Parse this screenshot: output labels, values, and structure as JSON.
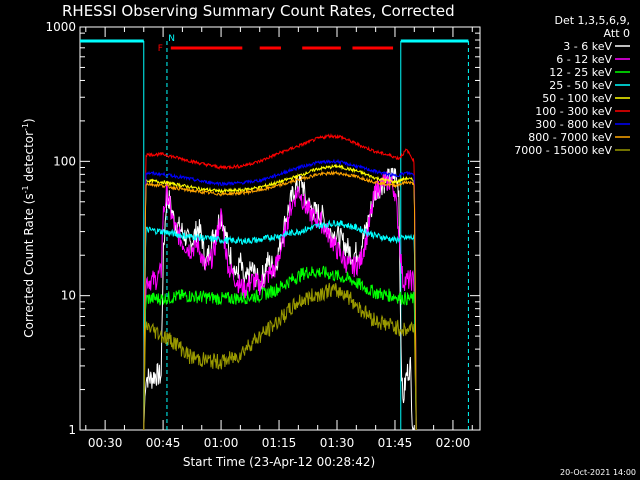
{
  "chart_data": {
    "type": "line",
    "title": "RHESSI Observing Summary Count Rates, Corrected",
    "xlabel": "Start Time (23-Apr-12 00:28:42)",
    "ylabel_main": "Corrected Count Rate (s",
    "ylabel_sup1": "-1",
    "ylabel_mid": " detector",
    "ylabel_sup2": "-1",
    "ylabel_end": ")",
    "yscale": "log",
    "ylim": [
      1,
      1000
    ],
    "xlim_minutes": [
      23.5,
      127
    ],
    "x_ticks": [
      {
        "m": 30,
        "label": "00:30"
      },
      {
        "m": 45,
        "label": "00:45"
      },
      {
        "m": 60,
        "label": "01:00"
      },
      {
        "m": 75,
        "label": "01:15"
      },
      {
        "m": 90,
        "label": "01:30"
      },
      {
        "m": 105,
        "label": "01:45"
      },
      {
        "m": 120,
        "label": "02:00"
      }
    ],
    "y_ticks": [
      {
        "v": 1,
        "label": "1"
      },
      {
        "v": 10,
        "label": "10"
      },
      {
        "v": 100,
        "label": "100"
      },
      {
        "v": 1000,
        "label": "1000"
      }
    ],
    "legend_header": [
      "Det 1,3,5,6,9,",
      "Att 0"
    ],
    "flags": {
      "f_label": "F",
      "n_label": "N"
    },
    "series": [
      {
        "name": "3 - 6 keV",
        "color": "#ffffff",
        "points": [
          [
            40,
            1
          ],
          [
            40.5,
            2.5
          ],
          [
            42,
            2.4
          ],
          [
            43,
            2.6
          ],
          [
            44.5,
            2.5
          ],
          [
            45,
            18
          ],
          [
            46,
            60
          ],
          [
            48,
            35
          ],
          [
            50,
            30
          ],
          [
            52,
            24
          ],
          [
            54,
            32
          ],
          [
            55,
            28
          ],
          [
            56,
            17
          ],
          [
            58,
            28
          ],
          [
            60,
            40
          ],
          [
            62,
            22
          ],
          [
            64,
            14
          ],
          [
            65,
            18
          ],
          [
            66,
            12
          ],
          [
            68,
            16
          ],
          [
            70,
            12
          ],
          [
            72,
            18
          ],
          [
            74,
            16
          ],
          [
            75,
            22
          ],
          [
            77,
            40
          ],
          [
            79,
            62
          ],
          [
            81,
            70
          ],
          [
            82,
            50
          ],
          [
            84,
            42
          ],
          [
            86,
            40
          ],
          [
            88,
            30
          ],
          [
            90,
            28
          ],
          [
            92,
            24
          ],
          [
            94,
            20
          ],
          [
            96,
            22
          ],
          [
            98,
            35
          ],
          [
            100,
            60
          ],
          [
            102,
            70
          ],
          [
            104,
            75
          ],
          [
            105,
            80
          ],
          [
            106,
            62
          ],
          [
            106.5,
            5
          ],
          [
            107,
            1.6
          ],
          [
            108,
            2.6
          ],
          [
            109,
            3
          ],
          [
            109.5,
            1.2
          ],
          [
            110,
            1
          ]
        ]
      },
      {
        "name": "6 - 12 keV",
        "color": "#ff00ff",
        "points": [
          [
            40,
            1
          ],
          [
            40.5,
            13
          ],
          [
            43,
            13
          ],
          [
            44.5,
            15
          ],
          [
            45,
            40
          ],
          [
            46,
            60
          ],
          [
            47,
            42
          ],
          [
            48,
            32
          ],
          [
            50,
            25
          ],
          [
            52,
            22
          ],
          [
            54,
            24
          ],
          [
            56,
            16
          ],
          [
            58,
            20
          ],
          [
            60,
            40
          ],
          [
            61,
            24
          ],
          [
            62,
            16
          ],
          [
            64,
            13
          ],
          [
            66,
            11
          ],
          [
            68,
            13
          ],
          [
            70,
            12
          ],
          [
            72,
            14
          ],
          [
            74,
            16
          ],
          [
            76,
            25
          ],
          [
            78,
            45
          ],
          [
            80,
            62
          ],
          [
            82,
            45
          ],
          [
            84,
            38
          ],
          [
            86,
            35
          ],
          [
            88,
            28
          ],
          [
            90,
            22
          ],
          [
            92,
            18
          ],
          [
            94,
            16
          ],
          [
            96,
            18
          ],
          [
            98,
            30
          ],
          [
            100,
            62
          ],
          [
            102,
            70
          ],
          [
            104,
            70
          ],
          [
            105,
            60
          ],
          [
            106,
            30
          ],
          [
            107,
            13
          ],
          [
            110,
            13
          ],
          [
            110.5,
            1
          ]
        ]
      },
      {
        "name": "12 - 25 keV",
        "color": "#00ff00",
        "points": [
          [
            40,
            1
          ],
          [
            40.5,
            9.5
          ],
          [
            45,
            9.5
          ],
          [
            50,
            10
          ],
          [
            55,
            9.8
          ],
          [
            60,
            9.5
          ],
          [
            65,
            9.6
          ],
          [
            70,
            10
          ],
          [
            74,
            11
          ],
          [
            78,
            13
          ],
          [
            82,
            15
          ],
          [
            86,
            15
          ],
          [
            90,
            14
          ],
          [
            94,
            13
          ],
          [
            97,
            11.5
          ],
          [
            100,
            10.5
          ],
          [
            104,
            10
          ],
          [
            108,
            9.5
          ],
          [
            110,
            9.5
          ],
          [
            110.5,
            1
          ]
        ]
      },
      {
        "name": "25 - 50 keV",
        "color": "#00ffff",
        "points": [
          [
            40,
            1
          ],
          [
            40.5,
            31
          ],
          [
            45,
            30
          ],
          [
            50,
            28
          ],
          [
            55,
            27
          ],
          [
            60,
            26
          ],
          [
            65,
            25.5
          ],
          [
            70,
            26
          ],
          [
            75,
            28
          ],
          [
            80,
            30
          ],
          [
            85,
            33
          ],
          [
            90,
            35
          ],
          [
            95,
            32
          ],
          [
            100,
            28
          ],
          [
            105,
            26
          ],
          [
            108,
            27
          ],
          [
            110,
            27
          ],
          [
            110.5,
            1
          ]
        ]
      },
      {
        "name": "50 - 100 keV",
        "color": "#ffff00",
        "points": [
          [
            40,
            1
          ],
          [
            40.5,
            72
          ],
          [
            45,
            70
          ],
          [
            50,
            66
          ],
          [
            55,
            62
          ],
          [
            60,
            60
          ],
          [
            65,
            61
          ],
          [
            70,
            64
          ],
          [
            75,
            70
          ],
          [
            80,
            78
          ],
          [
            85,
            88
          ],
          [
            90,
            92
          ],
          [
            95,
            85
          ],
          [
            100,
            75
          ],
          [
            105,
            70
          ],
          [
            108,
            75
          ],
          [
            110,
            72
          ],
          [
            110.5,
            1
          ]
        ]
      },
      {
        "name": "100 - 300 keV",
        "color": "#ff0000",
        "points": [
          [
            40,
            1
          ],
          [
            40.5,
            112
          ],
          [
            45,
            113
          ],
          [
            50,
            104
          ],
          [
            55,
            96
          ],
          [
            60,
            90
          ],
          [
            65,
            92
          ],
          [
            70,
            100
          ],
          [
            75,
            115
          ],
          [
            80,
            130
          ],
          [
            85,
            148
          ],
          [
            88,
            155
          ],
          [
            91,
            152
          ],
          [
            95,
            135
          ],
          [
            100,
            118
          ],
          [
            104,
            110
          ],
          [
            106,
            105
          ],
          [
            108,
            122
          ],
          [
            110,
            100
          ],
          [
            110.5,
            1
          ]
        ]
      },
      {
        "name": "300 - 800 keV",
        "color": "#0000ff",
        "points": [
          [
            40,
            1
          ],
          [
            40.5,
            82
          ],
          [
            45,
            80
          ],
          [
            50,
            76
          ],
          [
            55,
            71
          ],
          [
            60,
            68
          ],
          [
            65,
            69
          ],
          [
            70,
            72
          ],
          [
            75,
            80
          ],
          [
            80,
            90
          ],
          [
            85,
            98
          ],
          [
            90,
            100
          ],
          [
            95,
            92
          ],
          [
            100,
            84
          ],
          [
            105,
            78
          ],
          [
            108,
            82
          ],
          [
            110,
            80
          ],
          [
            110.5,
            1
          ]
        ]
      },
      {
        "name": "800 - 7000 keV",
        "color": "#ffa500",
        "points": [
          [
            40,
            1
          ],
          [
            40.5,
            68
          ],
          [
            45,
            66
          ],
          [
            50,
            62
          ],
          [
            55,
            59
          ],
          [
            60,
            57
          ],
          [
            65,
            58
          ],
          [
            70,
            61
          ],
          [
            75,
            66
          ],
          [
            80,
            73
          ],
          [
            85,
            80
          ],
          [
            90,
            82
          ],
          [
            95,
            77
          ],
          [
            100,
            70
          ],
          [
            105,
            66
          ],
          [
            108,
            70
          ],
          [
            110,
            68
          ],
          [
            110.5,
            1
          ]
        ]
      },
      {
        "name": "7000 - 15000 keV",
        "color": "#999900",
        "points": [
          [
            40,
            1
          ],
          [
            40.5,
            6
          ],
          [
            45,
            5
          ],
          [
            48,
            4.5
          ],
          [
            52,
            3.5
          ],
          [
            56,
            3.3
          ],
          [
            60,
            3.2
          ],
          [
            64,
            3.5
          ],
          [
            68,
            4.5
          ],
          [
            72,
            5.5
          ],
          [
            76,
            7
          ],
          [
            80,
            9
          ],
          [
            84,
            10
          ],
          [
            88,
            11
          ],
          [
            92,
            10.5
          ],
          [
            96,
            8
          ],
          [
            100,
            6.5
          ],
          [
            104,
            6
          ],
          [
            108,
            5.5
          ],
          [
            110,
            6
          ],
          [
            110.5,
            1
          ]
        ]
      }
    ],
    "shading_segments": [
      [
        47,
        65.5
      ],
      [
        70,
        75.5
      ],
      [
        81,
        91
      ],
      [
        94,
        104.5
      ]
    ],
    "vertical_markers": [
      {
        "m": 40,
        "color": "#00ffff",
        "style": "solid"
      },
      {
        "m": 46,
        "color": "#00ffff",
        "style": "dashed"
      },
      {
        "m": 106.5,
        "color": "#00ffff",
        "style": "solid"
      },
      {
        "m": 124,
        "color": "#00ffff",
        "style": "dashed"
      }
    ],
    "saa_segments": [
      [
        23.5,
        40
      ],
      [
        106.5,
        124
      ]
    ],
    "footer": "20-Oct-2021 14:00"
  }
}
